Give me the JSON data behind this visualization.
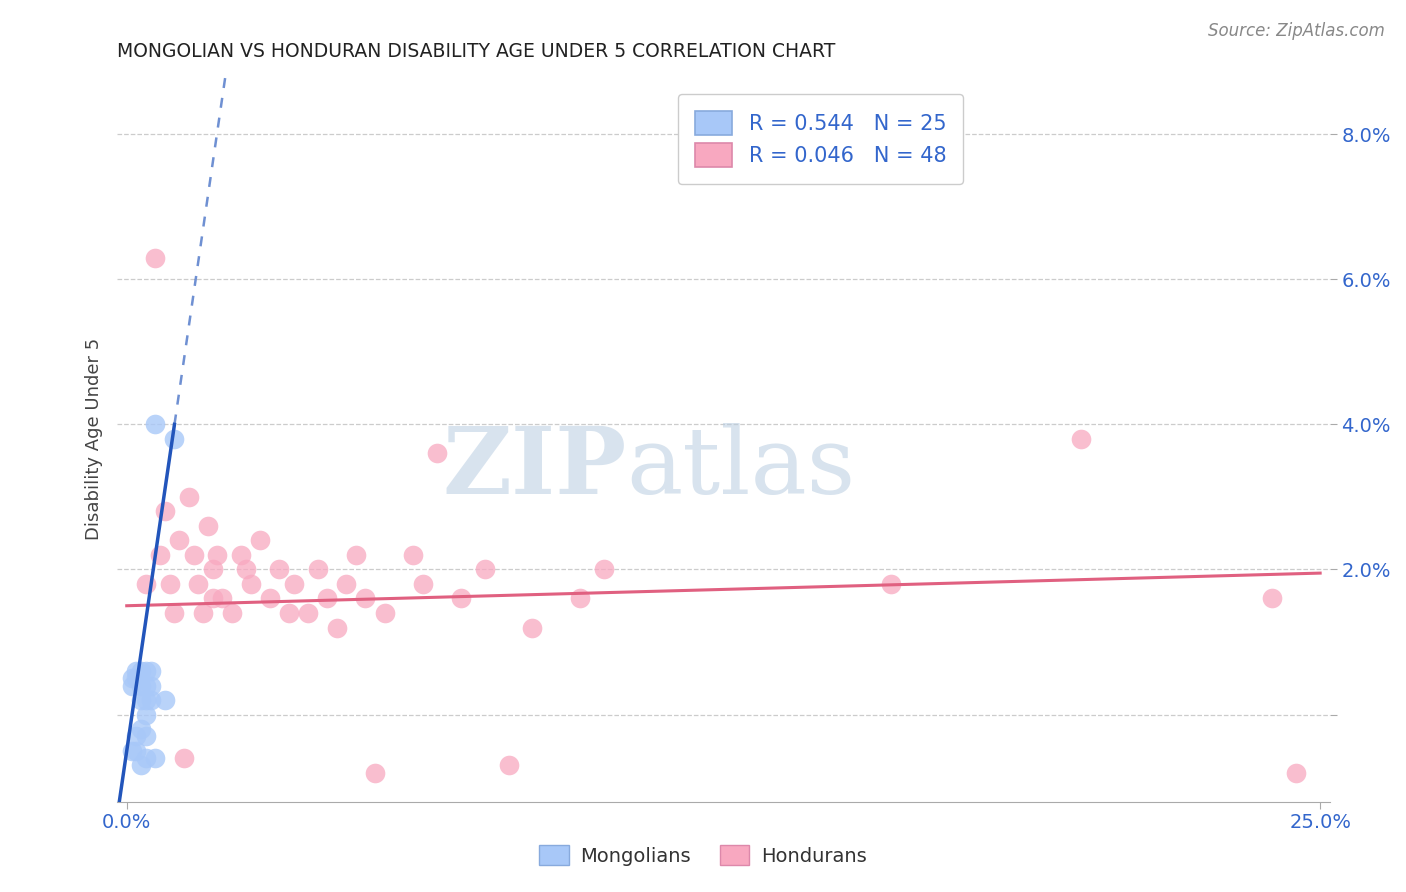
{
  "title": "MONGOLIAN VS HONDURAN DISABILITY AGE UNDER 5 CORRELATION CHART",
  "source": "Source: ZipAtlas.com",
  "ylabel": "Disability Age Under 5",
  "xlim": [
    -0.002,
    0.252
  ],
  "ylim": [
    -0.012,
    0.088
  ],
  "xticks": [
    0.0,
    0.25
  ],
  "xticklabels": [
    "0.0%",
    "25.0%"
  ],
  "yticks": [
    0.0,
    0.02,
    0.04,
    0.06,
    0.08
  ],
  "yticklabels": [
    "",
    "2.0%",
    "4.0%",
    "6.0%",
    "8.0%"
  ],
  "mongolian_R": 0.544,
  "mongolian_N": 25,
  "honduran_R": 0.046,
  "honduran_N": 48,
  "mongolian_color": "#a8c8f8",
  "honduran_color": "#f8a8c0",
  "mongolian_line_color": "#2255bb",
  "honduran_line_color": "#e06080",
  "mongolian_x": [
    0.001,
    0.001,
    0.001,
    0.002,
    0.002,
    0.002,
    0.002,
    0.003,
    0.003,
    0.003,
    0.003,
    0.003,
    0.004,
    0.004,
    0.004,
    0.004,
    0.004,
    0.004,
    0.005,
    0.005,
    0.005,
    0.006,
    0.006,
    0.008,
    0.01
  ],
  "mongolian_y": [
    0.004,
    0.005,
    -0.005,
    0.005,
    0.006,
    -0.003,
    -0.005,
    -0.002,
    0.002,
    0.004,
    0.006,
    -0.007,
    0.0,
    0.002,
    0.004,
    0.006,
    -0.003,
    -0.006,
    0.002,
    0.004,
    0.006,
    0.04,
    -0.006,
    0.002,
    0.038
  ],
  "honduran_x": [
    0.004,
    0.006,
    0.007,
    0.008,
    0.009,
    0.01,
    0.011,
    0.012,
    0.013,
    0.014,
    0.015,
    0.016,
    0.017,
    0.018,
    0.018,
    0.019,
    0.02,
    0.022,
    0.024,
    0.025,
    0.026,
    0.028,
    0.03,
    0.032,
    0.034,
    0.035,
    0.038,
    0.04,
    0.042,
    0.044,
    0.046,
    0.048,
    0.05,
    0.052,
    0.054,
    0.06,
    0.062,
    0.065,
    0.07,
    0.075,
    0.08,
    0.085,
    0.095,
    0.1,
    0.16,
    0.2,
    0.24,
    0.245
  ],
  "honduran_y": [
    0.018,
    0.063,
    0.022,
    0.028,
    0.018,
    0.014,
    0.024,
    -0.006,
    0.03,
    0.022,
    0.018,
    0.014,
    0.026,
    0.016,
    0.02,
    0.022,
    0.016,
    0.014,
    0.022,
    0.02,
    0.018,
    0.024,
    0.016,
    0.02,
    0.014,
    0.018,
    0.014,
    0.02,
    0.016,
    0.012,
    0.018,
    0.022,
    0.016,
    -0.008,
    0.014,
    0.022,
    0.018,
    0.036,
    0.016,
    0.02,
    -0.007,
    0.012,
    0.016,
    0.02,
    0.018,
    0.038,
    0.016,
    -0.008
  ],
  "watermark_zip": "ZIP",
  "watermark_atlas": "atlas",
  "background_color": "#ffffff",
  "grid_color": "#cccccc"
}
